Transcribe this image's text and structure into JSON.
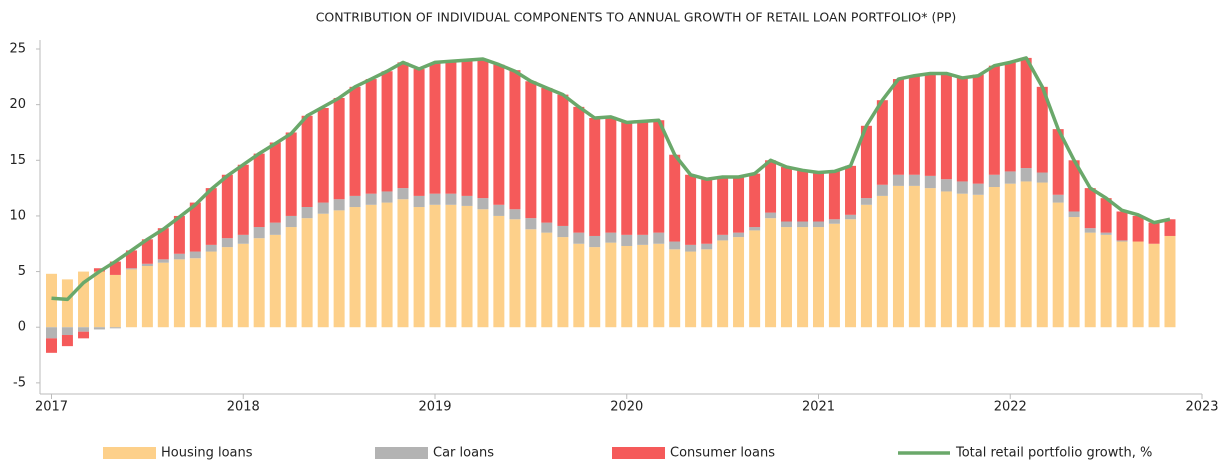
{
  "chart_data": {
    "type": "bar",
    "title": "CONTRIBUTION OF INDIVIDUAL COMPONENTS TO ANNUAL GROWTH OF RETAIL LOAN PORTFOLIO* (PP)",
    "stacked": true,
    "x": [
      2017,
      2017.083,
      2017.167,
      2017.25,
      2017.333,
      2017.417,
      2017.5,
      2017.583,
      2017.667,
      2017.75,
      2017.833,
      2017.917,
      2018,
      2018.083,
      2018.167,
      2018.25,
      2018.333,
      2018.417,
      2018.5,
      2018.583,
      2018.667,
      2018.75,
      2018.833,
      2018.917,
      2019,
      2019.083,
      2019.167,
      2019.25,
      2019.333,
      2019.417,
      2019.5,
      2019.583,
      2019.667,
      2019.75,
      2019.833,
      2019.917,
      2020,
      2020.083,
      2020.167,
      2020.25,
      2020.333,
      2020.417,
      2020.5,
      2020.583,
      2020.667,
      2020.75,
      2020.833,
      2020.917,
      2021,
      2021.083,
      2021.167,
      2021.25,
      2021.333,
      2021.417,
      2021.5,
      2021.583,
      2021.667,
      2021.75,
      2021.833,
      2021.917,
      2022,
      2022.083,
      2022.167,
      2022.25,
      2022.333,
      2022.417,
      2022.5,
      2022.583,
      2022.667,
      2022.75,
      2022.833
    ],
    "series": [
      {
        "name": "Housing loans",
        "color": "#fdd08a",
        "values": [
          4.8,
          4.3,
          5.0,
          5.0,
          4.7,
          5.2,
          5.5,
          5.8,
          6.1,
          6.2,
          6.8,
          7.2,
          7.5,
          8.0,
          8.3,
          9.0,
          9.8,
          10.2,
          10.5,
          10.8,
          11.0,
          11.2,
          11.5,
          10.8,
          11.0,
          11.0,
          10.9,
          10.6,
          10.0,
          9.7,
          8.8,
          8.5,
          8.1,
          7.5,
          7.2,
          7.6,
          7.3,
          7.4,
          7.5,
          7.0,
          6.8,
          7.0,
          7.8,
          8.1,
          8.7,
          9.8,
          9.0,
          9.0,
          9.0,
          9.3,
          9.7,
          11.0,
          11.8,
          12.7,
          12.7,
          12.5,
          12.2,
          12.0,
          11.9,
          12.6,
          12.9,
          13.1,
          13.0,
          11.2,
          9.9,
          8.5,
          8.3,
          7.7,
          7.7,
          7.5,
          8.2
        ]
      },
      {
        "name": "Car loans",
        "color": "#b3b3b3",
        "values": [
          -1.0,
          -0.7,
          -0.4,
          -0.2,
          -0.1,
          0.1,
          0.2,
          0.3,
          0.5,
          0.6,
          0.6,
          0.8,
          0.8,
          1.0,
          1.1,
          1.0,
          1.0,
          1.0,
          1.0,
          1.0,
          1.0,
          1.0,
          1.0,
          1.0,
          1.0,
          1.0,
          0.9,
          1.0,
          1.0,
          0.9,
          1.0,
          0.9,
          1.0,
          1.0,
          1.0,
          0.9,
          1.0,
          0.9,
          1.0,
          0.7,
          0.6,
          0.5,
          0.5,
          0.4,
          0.3,
          0.5,
          0.5,
          0.5,
          0.5,
          0.4,
          0.4,
          0.6,
          1.0,
          1.0,
          1.0,
          1.1,
          1.1,
          1.1,
          1.0,
          1.1,
          1.1,
          1.2,
          0.9,
          0.7,
          0.5,
          0.4,
          0.2,
          0.1,
          0.0,
          0.0,
          0.0
        ]
      },
      {
        "name": "Consumer loans",
        "color": "#f55a5a",
        "values": [
          -1.3,
          -1.0,
          -0.6,
          0.3,
          1.2,
          1.6,
          2.2,
          2.8,
          3.4,
          4.4,
          5.1,
          5.7,
          6.3,
          6.6,
          7.2,
          7.5,
          8.2,
          8.5,
          9.1,
          9.8,
          10.3,
          10.8,
          11.3,
          11.4,
          11.7,
          11.9,
          12.2,
          12.5,
          12.6,
          12.5,
          12.3,
          12.1,
          11.8,
          11.3,
          10.6,
          10.4,
          10.1,
          10.2,
          10.1,
          7.8,
          6.3,
          5.8,
          5.2,
          5.0,
          4.8,
          4.7,
          4.9,
          4.6,
          4.4,
          4.3,
          4.4,
          6.5,
          7.6,
          8.6,
          8.9,
          9.2,
          9.5,
          9.3,
          9.8,
          9.8,
          9.8,
          9.9,
          7.7,
          5.9,
          4.6,
          3.6,
          3.1,
          2.6,
          2.3,
          1.9,
          1.5
        ]
      },
      {
        "name": "Total retail portfolio growth, %",
        "color": "#6aa86a",
        "type": "line",
        "values": [
          2.6,
          2.5,
          4.0,
          5.0,
          5.9,
          6.9,
          7.9,
          8.8,
          9.9,
          11.0,
          12.4,
          13.6,
          14.6,
          15.6,
          16.5,
          17.4,
          19.0,
          19.8,
          20.6,
          21.6,
          22.3,
          23.0,
          23.8,
          23.2,
          23.8,
          23.9,
          24.0,
          24.1,
          23.6,
          23.0,
          22.1,
          21.5,
          20.9,
          19.8,
          18.8,
          18.9,
          18.4,
          18.5,
          18.6,
          15.5,
          13.7,
          13.3,
          13.5,
          13.5,
          13.8,
          15.0,
          14.4,
          14.1,
          13.9,
          14.0,
          14.5,
          18.1,
          20.4,
          22.3,
          22.6,
          22.8,
          22.8,
          22.4,
          22.6,
          23.5,
          23.8,
          24.2,
          21.6,
          17.8,
          15.0,
          12.5,
          11.6,
          10.5,
          10.1,
          9.4,
          9.7
        ]
      }
    ],
    "xlim": [
      2016.94,
      2023
    ],
    "xticks": [
      2017,
      2018,
      2019,
      2020,
      2021,
      2022,
      2023
    ],
    "ylim": [
      -6,
      25
    ],
    "yticks": [
      -5,
      0,
      5,
      10,
      15,
      20,
      25
    ],
    "legend": "bottom"
  }
}
